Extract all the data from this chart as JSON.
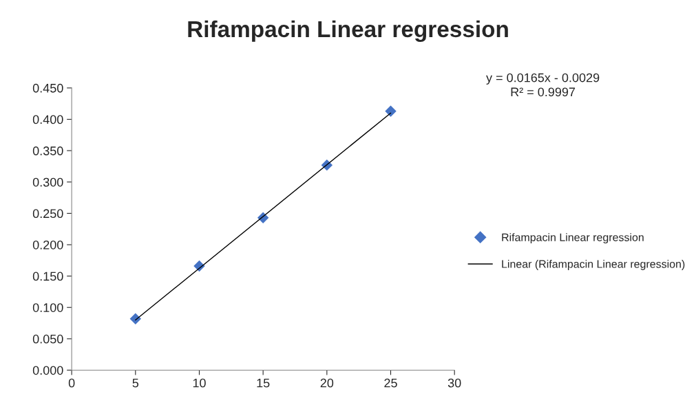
{
  "chart_data": {
    "type": "scatter",
    "title": "Rifampacin Linear regression",
    "series": [
      {
        "name": "Rifampacin Linear regression",
        "color": "#4472c4",
        "marker": "diamond",
        "x": [
          5,
          10,
          15,
          20,
          25
        ],
        "values": [
          0.082,
          0.166,
          0.243,
          0.327,
          0.413
        ]
      },
      {
        "name": "Linear (Rifampacin Linear regression)",
        "type": "line",
        "color": "#000000",
        "marker": "none",
        "line_style": "solid",
        "x": [
          5,
          25
        ],
        "values": [
          0.08,
          0.41
        ]
      }
    ],
    "annotations": [
      "y = 0.0165x - 0.0029\nR² = 0.9997"
    ],
    "xlim": [
      0,
      30
    ],
    "xticks": [
      0,
      5,
      10,
      15,
      20,
      25,
      30
    ],
    "ylim": [
      0,
      0.45
    ],
    "yticks": [
      {
        "value": 0,
        "label": "0.000"
      },
      {
        "value": 0.05,
        "label": "0.050"
      },
      {
        "value": 0.1,
        "label": "0.100"
      },
      {
        "value": 0.15,
        "label": "0.150"
      },
      {
        "value": 0.2,
        "label": "0.200"
      },
      {
        "value": 0.25,
        "label": "0.250"
      },
      {
        "value": 0.3,
        "label": "0.300"
      },
      {
        "value": 0.35,
        "label": "0.350"
      },
      {
        "value": 0.4,
        "label": "0.400"
      },
      {
        "value": 0.45,
        "label": "0.450"
      }
    ],
    "grid": false,
    "legend": "right"
  }
}
